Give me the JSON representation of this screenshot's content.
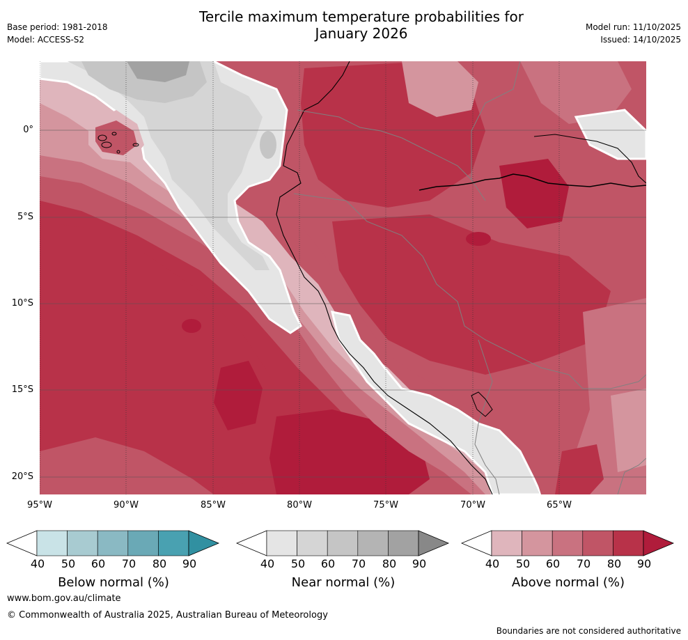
{
  "header": {
    "title_line1": "Tercile maximum temperature probabilities for",
    "title_line2": "January 2026",
    "base_period": "Base period: 1981-2018",
    "model": "Model: ACCESS-S2",
    "model_run": "Model run: 11/10/2025",
    "issued": "Issued: 14/10/2025"
  },
  "axes": {
    "lat_labels": [
      "0°",
      "5°S",
      "10°S",
      "15°S",
      "20°S"
    ],
    "lon_labels": [
      "95°W",
      "90°W",
      "85°W",
      "80°W",
      "75°W",
      "70°W",
      "65°W"
    ]
  },
  "legends": [
    {
      "name": "below",
      "title": "Below normal (%)",
      "ticks": [
        "40",
        "50",
        "60",
        "70",
        "80",
        "90"
      ],
      "colors": [
        "#ffffff",
        "#c9e3e7",
        "#a8cbd1",
        "#8ab9c3",
        "#6aa9b6",
        "#49a1b1",
        "#3190a1"
      ]
    },
    {
      "name": "near",
      "title": "Near normal (%)",
      "ticks": [
        "40",
        "50",
        "60",
        "70",
        "80",
        "90"
      ],
      "colors": [
        "#ffffff",
        "#e5e5e5",
        "#d5d5d5",
        "#c5c5c5",
        "#b4b4b4",
        "#a2a2a2",
        "#888888"
      ]
    },
    {
      "name": "above",
      "title": "Above normal (%)",
      "ticks": [
        "40",
        "50",
        "60",
        "70",
        "80",
        "90"
      ],
      "colors": [
        "#ffffff",
        "#dfb5bc",
        "#d4959e",
        "#c97280",
        "#c05566",
        "#b83249",
        "#b01c3b"
      ]
    }
  ],
  "footer": {
    "website": "www.bom.gov.au/climate",
    "copyright": "© Commonwealth of Australia 2025, Australian Bureau of Meteorology",
    "disclaimer": "Boundaries are not considered authoritative"
  }
}
